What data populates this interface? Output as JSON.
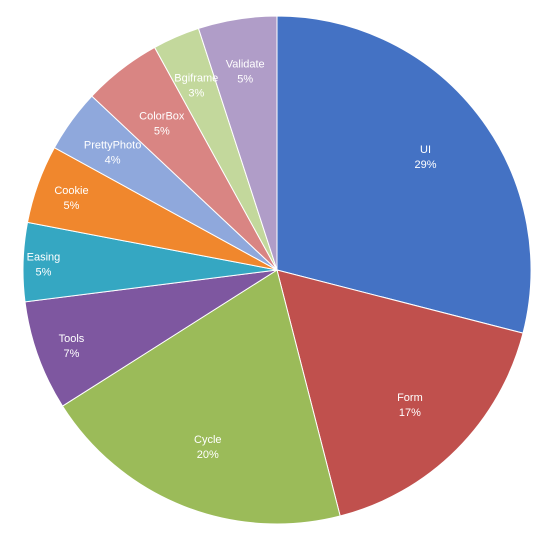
{
  "chart_data": {
    "type": "pie",
    "title": "",
    "start": "12 o'clock",
    "direction": "clockwise",
    "legend": "none",
    "data_labels": "category and percentage",
    "slices": [
      {
        "label": "UI",
        "value": 29,
        "pct_label": "29%",
        "color": "#4472C4"
      },
      {
        "label": "Form",
        "value": 17,
        "pct_label": "17%",
        "color": "#C0504D"
      },
      {
        "label": "Cycle",
        "value": 20,
        "pct_label": "20%",
        "color": "#9BBB59"
      },
      {
        "label": "Tools",
        "value": 7,
        "pct_label": "7%",
        "color": "#7E57A0"
      },
      {
        "label": "Easing",
        "value": 5,
        "pct_label": "5%",
        "color": "#35A7C2"
      },
      {
        "label": "Cookie",
        "value": 5,
        "pct_label": "5%",
        "color": "#F0872D"
      },
      {
        "label": "PrettyPhoto",
        "value": 4,
        "pct_label": "4%",
        "color": "#8FA8DC"
      },
      {
        "label": "ColorBox",
        "value": 5,
        "pct_label": "5%",
        "color": "#D98583"
      },
      {
        "label": "Bgiframe",
        "value": 3,
        "pct_label": "3%",
        "color": "#C3D89C"
      },
      {
        "label": "Validate",
        "value": 5,
        "pct_label": "5%",
        "color": "#B09DC8"
      }
    ]
  }
}
